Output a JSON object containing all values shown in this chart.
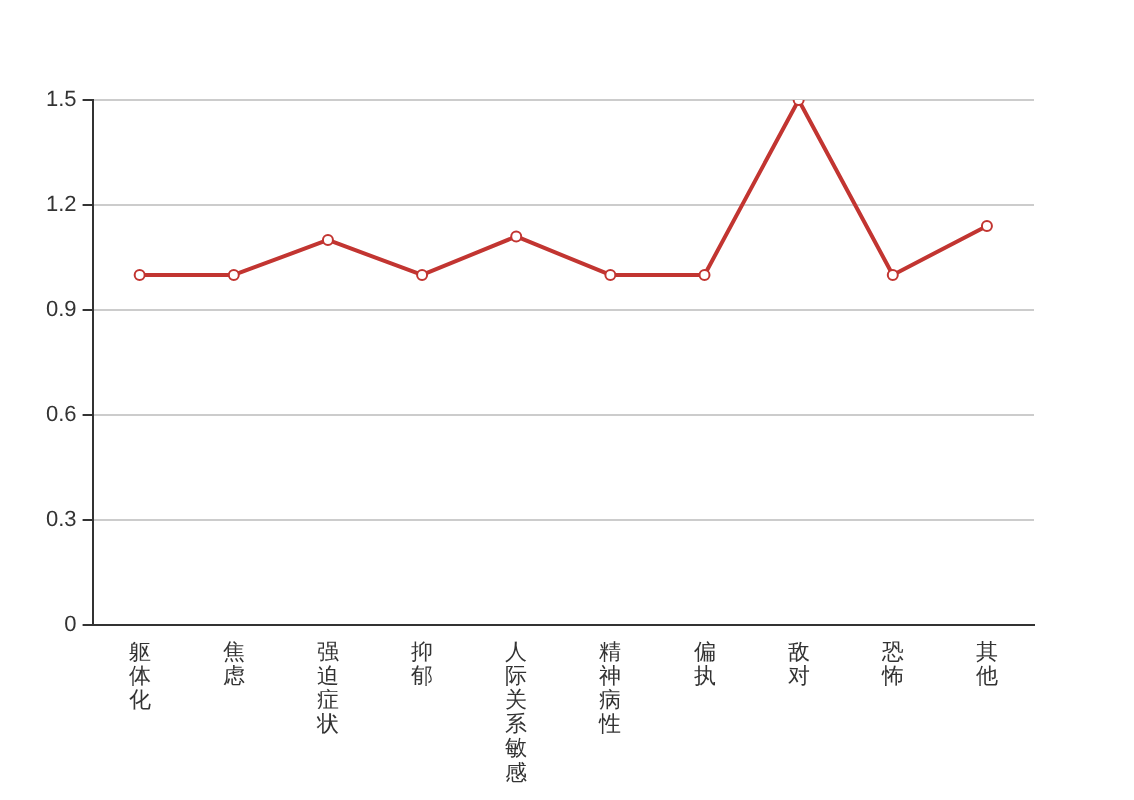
{
  "chart_data": {
    "type": "line",
    "categories": [
      "躯体化",
      "焦虑",
      "强迫症状",
      "抑郁",
      "人际关系敏感",
      "精神病性",
      "偏执",
      "敌对",
      "恐怖",
      "其他"
    ],
    "series": [
      {
        "color": "#c23531",
        "values": [
          1.0,
          1.0,
          1.1,
          1.0,
          1.11,
          1.0,
          1.0,
          1.5,
          1.0,
          1.14
        ]
      }
    ],
    "ylim": [
      0,
      1.5
    ],
    "yticks": [
      0,
      0.3,
      0.6,
      0.9,
      1.2,
      1.5
    ],
    "grid": "y",
    "legend": false,
    "marker": "circle",
    "line_style": "solid"
  }
}
